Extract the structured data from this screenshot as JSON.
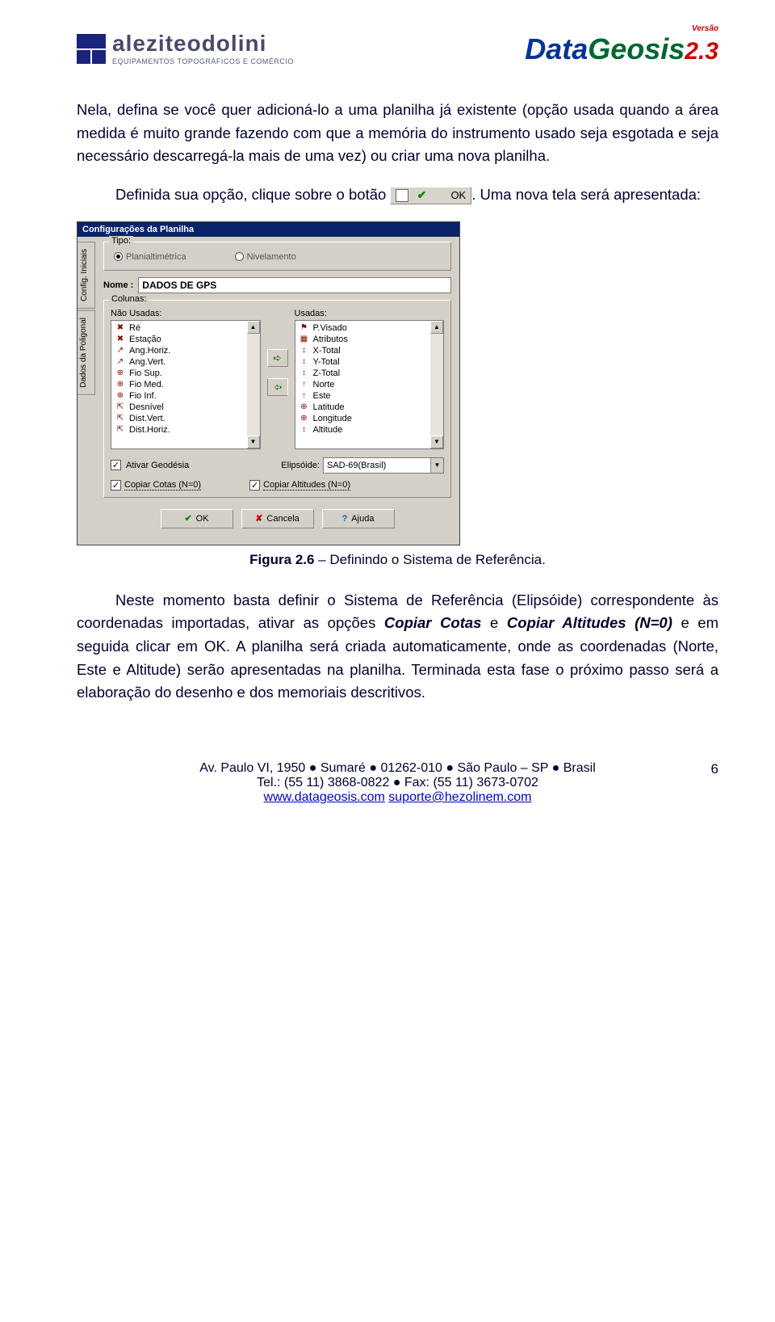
{
  "logos": {
    "left_brand": "aleziteodolini",
    "left_sub": "EQUIPAMENTOS TOPOGRÁFICOS E COMÉRCIO",
    "right_version": "Versão",
    "right_data": "Data",
    "right_geosis": "Geosis",
    "right_ver": "2.3"
  },
  "para1": "Nela, defina se você quer adicioná-lo a uma planilha já existente (opção usada quando a área medida é muito grande fazendo com que a memória do instrumento usado seja esgotada e seja necessário descarregá-la mais de uma vez) ou criar uma nova planilha.",
  "para2_a": "Definida sua opção, clique sobre o botão ",
  "ok_btn_label": "OK",
  "para2_b": ". Uma nova tela será apresentada:",
  "dialog": {
    "title": "Configurações da Planilha",
    "side_tabs": [
      "Config. Iniciais",
      "Dados da Poligonal"
    ],
    "tipo_legend": "Tipo:",
    "tipo_options": [
      "Planialtimétrica",
      "Nivelamento"
    ],
    "nome_label": "Nome :",
    "nome_value": "DADOS DE GPS",
    "cols_legend": "Colunas:",
    "nao_usadas_label": "Não Usadas:",
    "usadas_label": "Usadas:",
    "nao_usadas": [
      "Ré",
      "Estação",
      "Ang.Horiz.",
      "Ang.Vert.",
      "Fio Sup.",
      "Fio Med.",
      "Fio Inf.",
      "Desnível",
      "Dist.Vert.",
      "Dist.Horiz."
    ],
    "usadas": [
      "P.Visado",
      "Atributos",
      "X-Total",
      "Y-Total",
      "Z-Total",
      "Norte",
      "Este",
      "Latitude",
      "Longitude",
      "Altitude"
    ],
    "ativar_geo": "Ativar Geodésia",
    "elips_label": "Elipsóide:",
    "elips_value": "SAD-69(Brasil)",
    "copiar_cotas": "Copiar Cotas (N=0)",
    "copiar_alt": "Copiar Altitudes (N=0)",
    "btn_ok": "OK",
    "btn_cancel": "Cancela",
    "btn_help": "Ajuda"
  },
  "figure_caption_bold": "Figura 2.6",
  "figure_caption_rest": " – Definindo o Sistema de Referência.",
  "para3_a": "Neste momento basta definir o Sistema de Referência (Elipsóide) correspondente às coordenadas importadas, ativar as opções ",
  "para3_b1": "Copiar Cotas",
  "para3_mid": " e ",
  "para3_b2": "Copiar Altitudes (N=0)",
  "para3_c": " e em seguida clicar em OK. A planilha será criada automaticamente, onde as coordenadas (Norte, Este e Altitude) serão apresentadas na planilha. Terminada esta fase o próximo passo será a elaboração do desenho e dos memoriais descritivos.",
  "footer": {
    "addr": "Av. Paulo VI, 1950 ● Sumaré ● 01262-010 ● São Paulo – SP ● Brasil",
    "tel": "Tel.: (55 11) 3868-0822 ● Fax: (55 11) 3673-0702",
    "url": "www.datageosis.com",
    "email": "suporte@hezolinem.com",
    "page": "6"
  },
  "colors": {
    "text": "#000033",
    "titlebar": "#0a246a",
    "dialog_bg": "#d4d0c8",
    "link": "#0000cc"
  }
}
